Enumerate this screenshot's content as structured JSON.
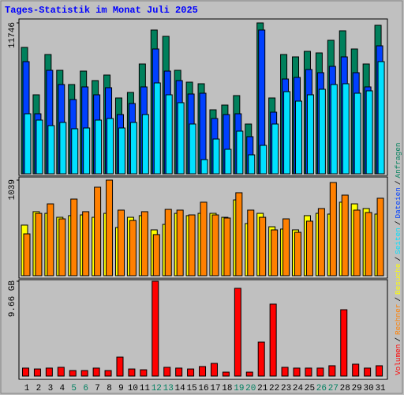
{
  "chart_data": [
    {
      "type": "bar",
      "title": "Tages-Statistik im Monat Juli 2025",
      "ylim": [
        0,
        11746
      ],
      "yticks": [
        11746
      ],
      "series": [
        {
          "name": "Anfragen",
          "color": "#00805c",
          "values": [
            9840,
            6150,
            9287,
            8057,
            6950,
            7995,
            7257,
            7688,
            5904,
            6335,
            8549,
            11193,
            10701,
            8057,
            7134,
            7011,
            4982,
            5351,
            6089,
            3875,
            11746,
            5904,
            9287,
            9102,
            9533,
            9410,
            10394,
            11132,
            9717,
            8549,
            11562
          ]
        },
        {
          "name": "Dateien",
          "color": "#0040ff",
          "values": [
            8733,
            4674,
            8057,
            6950,
            5781,
            6765,
            6150,
            6704,
            4613,
            5474,
            6765,
            9717,
            7995,
            7257,
            6212,
            6273,
            4305,
            4613,
            4674,
            2891,
            11193,
            4797,
            7380,
            7503,
            8118,
            7872,
            8364,
            9102,
            7872,
            6765,
            9963
          ]
        },
        {
          "name": "Seiten",
          "color": "#00e0ff",
          "values": [
            4674,
            4182,
            3752,
            3998,
            3506,
            3567,
            4182,
            4305,
            3567,
            3998,
            4613,
            7073,
            6150,
            5535,
            3875,
            1107,
            2706,
            1907,
            3321,
            1476,
            2214,
            3875,
            6396,
            5658,
            6150,
            6581,
            6950,
            7011,
            6273,
            6458,
            8733
          ]
        }
      ]
    },
    {
      "type": "bar",
      "ylim": [
        0,
        1039
      ],
      "yticks": [
        1039
      ],
      "series": [
        {
          "name": "Besuche",
          "color": "#ffff00",
          "values": [
            550,
            696,
            678,
            635,
            653,
            661,
            635,
            678,
            524,
            635,
            653,
            498,
            558,
            678,
            653,
            678,
            678,
            635,
            824,
            567,
            678,
            532,
            507,
            498,
            653,
            678,
            670,
            799,
            781,
            730,
            670
          ]
        },
        {
          "name": "Rechner",
          "color": "#ff8000",
          "values": [
            455,
            678,
            781,
            618,
            833,
            696,
            962,
            1039,
            713,
            601,
            696,
            447,
            721,
            713,
            661,
            799,
            661,
            627,
            902,
            713,
            635,
            498,
            618,
            472,
            593,
            730,
            1013,
            876,
            713,
            687,
            842
          ]
        }
      ]
    },
    {
      "type": "bar",
      "ylim": [
        0,
        9.66
      ],
      "yticks": [
        {
          "value": 9.66,
          "label": "9.66 GB"
        }
      ],
      "categories": [
        "1",
        "2",
        "3",
        "4",
        "5",
        "6",
        "7",
        "8",
        "9",
        "10",
        "11",
        "12",
        "13",
        "14",
        "15",
        "16",
        "17",
        "18",
        "19",
        "20",
        "21",
        "22",
        "23",
        "24",
        "25",
        "26",
        "27",
        "28",
        "29",
        "30",
        "31"
      ],
      "category_colors": [
        "#000000",
        "#000000",
        "#000000",
        "#000000",
        "#008060",
        "#008060",
        "#000000",
        "#000000",
        "#000000",
        "#000000",
        "#000000",
        "#008060",
        "#008060",
        "#000000",
        "#000000",
        "#000000",
        "#000000",
        "#000000",
        "#008060",
        "#008060",
        "#000000",
        "#000000",
        "#000000",
        "#000000",
        "#000000",
        "#008060",
        "#008060",
        "#000000",
        "#000000",
        "#000000",
        "#000000"
      ],
      "legend_separator": "/",
      "series": [
        {
          "name": "Volumen",
          "color": "#ff0000",
          "values": [
            0.81,
            0.72,
            0.81,
            0.89,
            0.56,
            0.56,
            0.81,
            0.56,
            1.93,
            0.72,
            0.64,
            9.66,
            0.89,
            0.81,
            0.72,
            0.97,
            1.29,
            0.4,
            8.94,
            0.4,
            3.46,
            7.33,
            0.89,
            0.81,
            0.81,
            0.81,
            1.05,
            6.76,
            1.21,
            0.81,
            1.05
          ]
        }
      ]
    }
  ]
}
